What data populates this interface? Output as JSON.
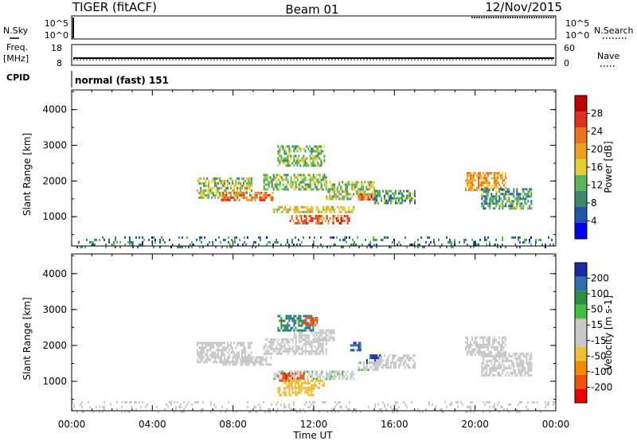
{
  "header": {
    "title": "TIGER (fitACF)",
    "beam": "Beam 01",
    "date": "12/Nov/2015"
  },
  "aux_panels": {
    "nsky_label": "N.Sky",
    "nsky_ticks": [
      "10^5",
      "10^0"
    ],
    "nsearch_label": "N.Search",
    "freq_label_1": "Freq.",
    "freq_label_2": "[MHz]",
    "freq_ticks": [
      "18",
      "8"
    ],
    "nave_label": "Nave",
    "nave_ticks": [
      "60",
      "0"
    ],
    "cpid_label": "CPID",
    "cpid_text": "normal (fast) 151"
  },
  "colors": {
    "power_scale": [
      "#0000ee",
      "#2255aa",
      "#3f8a6a",
      "#5ab85a",
      "#e8d030",
      "#f0a020",
      "#f07020",
      "#e03020",
      "#c00000"
    ],
    "velocity_scale": [
      "#ee0000",
      "#f05010",
      "#f08c00",
      "#f0c030",
      "#c8c8c8",
      "#c8c8c8",
      "#40c040",
      "#2a9040",
      "#2f6fb0",
      "#1a2aa0"
    ]
  },
  "chart_data": [
    {
      "type": "heatmap",
      "name": "power",
      "ylabel": "Slant Range [km]",
      "yticks": [
        "4000",
        "3000",
        "2000",
        "1000"
      ],
      "ylim": [
        180,
        4550
      ],
      "colorbar": {
        "label": "Power [dB]",
        "ticks": [
          "28",
          "24",
          "20",
          "16",
          "12",
          "8",
          "4"
        ],
        "range": [
          0,
          32
        ]
      },
      "features": [
        {
          "t_start": 6.2,
          "t_end": 8.9,
          "r_start": 1550,
          "r_end": 2100,
          "value": 14
        },
        {
          "t_start": 7.4,
          "t_end": 10.0,
          "r_start": 1450,
          "r_end": 1700,
          "value": 22
        },
        {
          "t_start": 9.5,
          "t_end": 12.6,
          "r_start": 1750,
          "r_end": 2200,
          "value": 13
        },
        {
          "t_start": 10.2,
          "t_end": 12.5,
          "r_start": 2400,
          "r_end": 3000,
          "value": 12
        },
        {
          "t_start": 12.6,
          "t_end": 15.0,
          "r_start": 1500,
          "r_end": 2000,
          "value": 14
        },
        {
          "t_start": 14.2,
          "t_end": 15.1,
          "r_start": 1450,
          "r_end": 1650,
          "value": 24
        },
        {
          "t_start": 15.0,
          "t_end": 17.0,
          "r_start": 1400,
          "r_end": 1750,
          "value": 10
        },
        {
          "t_start": 10.0,
          "t_end": 14.0,
          "r_start": 1100,
          "r_end": 1300,
          "value": 16
        },
        {
          "t_start": 10.8,
          "t_end": 13.8,
          "r_start": 800,
          "r_end": 1050,
          "value": 24
        },
        {
          "t_start": 19.5,
          "t_end": 21.5,
          "r_start": 1750,
          "r_end": 2250,
          "value": 20
        },
        {
          "t_start": 20.3,
          "t_end": 22.8,
          "r_start": 1200,
          "r_end": 1800,
          "value": 10
        },
        {
          "t_start": 0.0,
          "t_end": 24.0,
          "r_start": 180,
          "r_end": 450,
          "value": 8
        }
      ]
    },
    {
      "type": "heatmap",
      "name": "velocity",
      "ylabel": "Slant Range [km]",
      "yticks": [
        "4000",
        "3000",
        "2000",
        "1000"
      ],
      "ylim": [
        180,
        4550
      ],
      "colorbar": {
        "label": "Velocity [m s-1]",
        "ticks": [
          "200",
          "100",
          "50",
          "15",
          "-15",
          "-50",
          "-100",
          "-200"
        ],
        "range": [
          -250,
          250
        ]
      },
      "features": [
        {
          "t_start": 6.2,
          "t_end": 8.9,
          "r_start": 1550,
          "r_end": 2100,
          "value": 0
        },
        {
          "t_start": 7.4,
          "t_end": 10.0,
          "r_start": 1450,
          "r_end": 1700,
          "value": -30
        },
        {
          "t_start": 9.5,
          "t_end": 12.6,
          "r_start": 1750,
          "r_end": 2200,
          "value": 0
        },
        {
          "t_start": 11.0,
          "t_end": 13.0,
          "r_start": 2150,
          "r_end": 2450,
          "value": 0
        },
        {
          "t_start": 10.2,
          "t_end": 12.0,
          "r_start": 2450,
          "r_end": 2850,
          "value": 150
        },
        {
          "t_start": 11.5,
          "t_end": 12.2,
          "r_start": 2550,
          "r_end": 2800,
          "value": -180
        },
        {
          "t_start": 13.8,
          "t_end": 14.3,
          "r_start": 1850,
          "r_end": 2100,
          "value": 200
        },
        {
          "t_start": 14.6,
          "t_end": 15.3,
          "r_start": 1550,
          "r_end": 1750,
          "value": 210
        },
        {
          "t_start": 14.2,
          "t_end": 15.2,
          "r_start": 1300,
          "r_end": 1550,
          "value": 40
        },
        {
          "t_start": 15.0,
          "t_end": 17.0,
          "r_start": 1400,
          "r_end": 1750,
          "value": 25
        },
        {
          "t_start": 10.0,
          "t_end": 14.0,
          "r_start": 1100,
          "r_end": 1300,
          "value": 40
        },
        {
          "t_start": 10.2,
          "t_end": 11.5,
          "r_start": 1050,
          "r_end": 1250,
          "value": -190
        },
        {
          "t_start": 10.5,
          "t_end": 12.5,
          "r_start": 850,
          "r_end": 1050,
          "value": -80
        },
        {
          "t_start": 10.2,
          "t_end": 12.0,
          "r_start": 650,
          "r_end": 850,
          "value": -60
        },
        {
          "t_start": 19.5,
          "t_end": 21.5,
          "r_start": 1750,
          "r_end": 2250,
          "value": 0
        },
        {
          "t_start": 20.3,
          "t_end": 22.8,
          "r_start": 1200,
          "r_end": 1800,
          "value": 0
        },
        {
          "t_start": 0.0,
          "t_end": 24.0,
          "r_start": 180,
          "r_end": 450,
          "value": -20
        }
      ]
    }
  ],
  "time_axis": {
    "xlabel": "Time UT",
    "ticks": [
      "00:00",
      "04:00",
      "08:00",
      "12:00",
      "16:00",
      "20:00",
      "00:00"
    ],
    "xlim": [
      0,
      24
    ]
  }
}
